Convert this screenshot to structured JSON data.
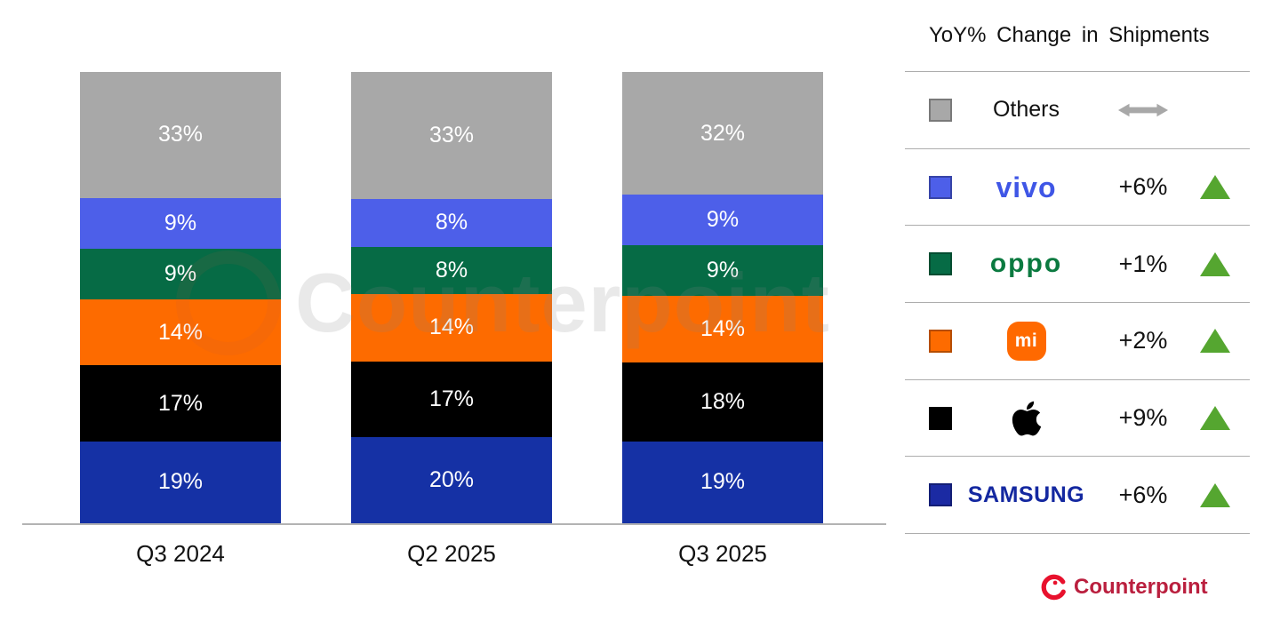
{
  "legend": {
    "title": "YoY% Change in Shipments",
    "rows": [
      {
        "label": "Others",
        "brand_text": "Others",
        "change": "",
        "direction": "flat",
        "color": "#a8a8a8"
      },
      {
        "label": "vivo",
        "logo_text": "vivo",
        "change": "+6%",
        "direction": "up",
        "color": "#4d5fe9",
        "logo_color": "#3f56e6"
      },
      {
        "label": "OPPO",
        "logo_text": "oppo",
        "change": "+1%",
        "direction": "up",
        "color": "#066b45",
        "logo_color": "#0b7a40"
      },
      {
        "label": "Xiaomi",
        "logo_text": "mi",
        "change": "+2%",
        "direction": "up",
        "color": "#fd6b00",
        "logo_color": "#ff6900"
      },
      {
        "label": "Apple",
        "logo_text": "",
        "change": "+9%",
        "direction": "up",
        "color": "#000000"
      },
      {
        "label": "Samsung",
        "logo_text": "SAMSUNG",
        "change": "+6%",
        "direction": "up",
        "color": "#1b2aa3",
        "logo_color": "#1428a0"
      }
    ]
  },
  "chart_data": {
    "type": "bar",
    "stacked": true,
    "value_suffix": "%",
    "categories": [
      "Q3 2024",
      "Q2 2025",
      "Q3 2025"
    ],
    "series": [
      {
        "name": "Samsung",
        "color": "#1531a5",
        "values": [
          19,
          20,
          19
        ]
      },
      {
        "name": "Apple",
        "color": "#000000",
        "values": [
          17,
          17,
          18
        ]
      },
      {
        "name": "Xiaomi",
        "color": "#fd6b00",
        "values": [
          14,
          14,
          14
        ]
      },
      {
        "name": "OPPO",
        "color": "#066b45",
        "values": [
          9,
          8,
          9
        ]
      },
      {
        "name": "vivo",
        "color": "#4d5fe9",
        "values": [
          9,
          8,
          9
        ]
      },
      {
        "name": "Others",
        "color": "#a8a8a8",
        "values": [
          33,
          33,
          32
        ]
      }
    ],
    "order_top_to_bottom": [
      "Others",
      "vivo",
      "OPPO",
      "Xiaomi",
      "Apple",
      "Samsung"
    ],
    "legend_position": "right"
  },
  "watermark": {
    "text": "Counterpoint"
  },
  "footer": {
    "brand": "Counterpoint"
  },
  "colors": {
    "positive_green": "#55a630",
    "flat_gray": "#a8a8a8",
    "axis_gray": "#b3b3b3",
    "footer_red": "#ba1f3e",
    "footer_icon_red": "#e8112d",
    "label_white": "#ffffff"
  }
}
